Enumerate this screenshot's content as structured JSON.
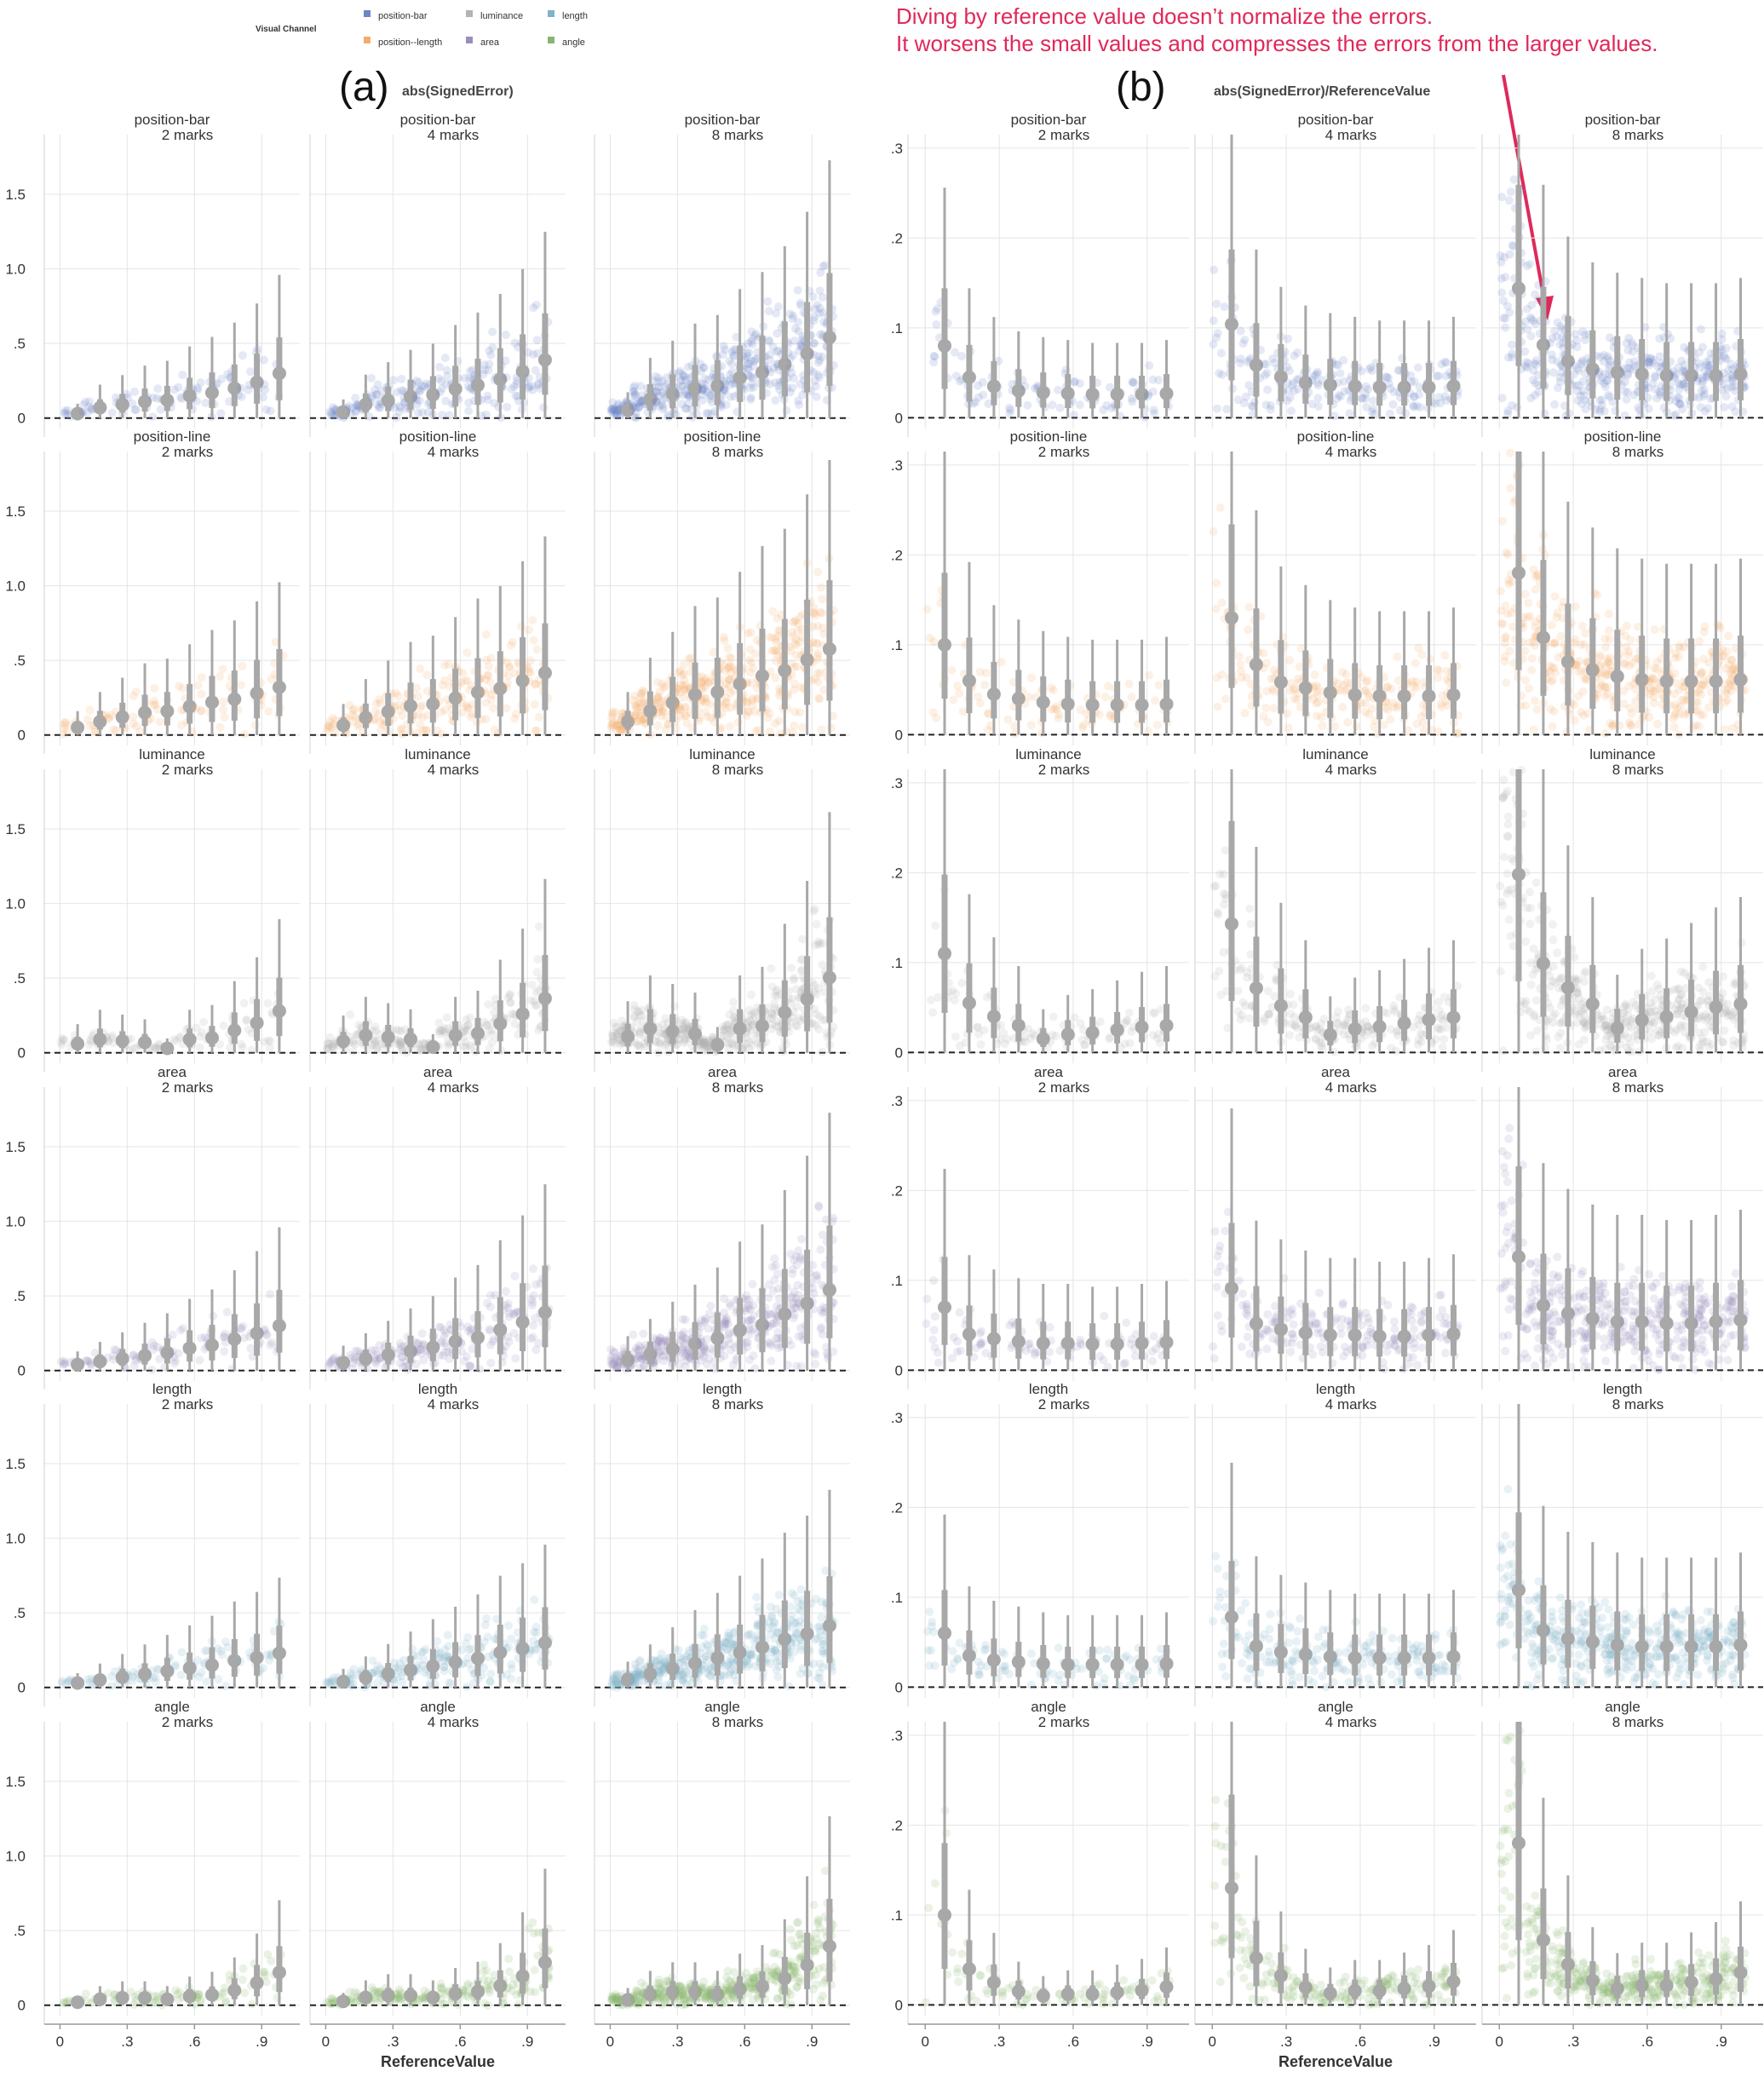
{
  "legend": {
    "title": "Visual Channel",
    "items": [
      {
        "label": "position-bar",
        "color": "#6f86c5"
      },
      {
        "label": "luminance",
        "color": "#b3b3b3"
      },
      {
        "label": "length",
        "color": "#7fb3c9"
      },
      {
        "label": "position--length",
        "color": "#f4ac6b"
      },
      {
        "label": "area",
        "color": "#9b8fba"
      },
      {
        "label": "angle",
        "color": "#8bb56f"
      }
    ]
  },
  "annotation": {
    "line1": "Diving by reference value doesn’t normalize the errors.",
    "line2": "It worsens the small values and compresses the errors from the larger values."
  },
  "chart_data": [
    {
      "type": "scatter",
      "panel_label": "(a)",
      "metric": "abs(SignedError)",
      "xlabel": "ReferenceValue",
      "x_ticks": [
        "0",
        ".3",
        ".6",
        ".9"
      ],
      "x_tick_values": [
        0,
        0.3,
        0.6,
        0.9
      ],
      "xlim": [
        -0.07,
        1.07
      ],
      "y_ticks": [
        "0",
        ".5",
        "1.0",
        "1.5"
      ],
      "y_tick_values": [
        0,
        0.5,
        1.0,
        1.5
      ],
      "ylim": [
        -0.07,
        1.9
      ],
      "rows": [
        "position-bar",
        "position-line",
        "luminance",
        "area",
        "length",
        "angle"
      ],
      "mark_counts": [
        "2 marks",
        "4 marks",
        "8 marks"
      ],
      "reference_values": [
        0.05,
        0.15,
        0.25,
        0.35,
        0.45,
        0.55,
        0.65,
        0.75,
        0.85,
        0.95
      ],
      "median_by_row": {
        "position-bar": [
          0.03,
          0.07,
          0.09,
          0.11,
          0.12,
          0.15,
          0.17,
          0.2,
          0.24,
          0.3
        ],
        "position-line": [
          0.05,
          0.09,
          0.12,
          0.15,
          0.16,
          0.19,
          0.22,
          0.24,
          0.28,
          0.32
        ],
        "luminance": [
          0.06,
          0.09,
          0.08,
          0.07,
          0.03,
          0.09,
          0.1,
          0.15,
          0.2,
          0.28
        ],
        "area": [
          0.04,
          0.06,
          0.08,
          0.1,
          0.12,
          0.15,
          0.17,
          0.21,
          0.25,
          0.3
        ],
        "length": [
          0.03,
          0.05,
          0.07,
          0.09,
          0.11,
          0.13,
          0.15,
          0.18,
          0.2,
          0.23
        ],
        "angle": [
          0.02,
          0.04,
          0.05,
          0.05,
          0.04,
          0.06,
          0.07,
          0.1,
          0.15,
          0.22
        ]
      }
    },
    {
      "type": "scatter",
      "panel_label": "(b)",
      "metric": "abs(SignedError)/ReferenceValue",
      "xlabel": "ReferenceValue",
      "x_ticks": [
        "0",
        ".3",
        ".6",
        ".9"
      ],
      "x_tick_values": [
        0,
        0.3,
        0.6,
        0.9
      ],
      "xlim": [
        -0.07,
        1.07
      ],
      "y_ticks": [
        "0",
        ".1",
        ".2",
        ".3"
      ],
      "y_tick_values": [
        0,
        0.1,
        0.2,
        0.3
      ],
      "ylim": [
        -0.012,
        0.315
      ],
      "rows": [
        "position-bar",
        "position-line",
        "luminance",
        "area",
        "length",
        "angle"
      ],
      "mark_counts": [
        "2 marks",
        "4 marks",
        "8 marks"
      ],
      "reference_values": [
        0.05,
        0.15,
        0.25,
        0.35,
        0.45,
        0.55,
        0.65,
        0.75,
        0.85,
        0.95
      ],
      "median_by_row": {
        "position-bar": [
          0.08,
          0.045,
          0.035,
          0.03,
          0.028,
          0.027,
          0.026,
          0.026,
          0.026,
          0.027
        ],
        "position-line": [
          0.1,
          0.06,
          0.045,
          0.04,
          0.036,
          0.034,
          0.033,
          0.033,
          0.033,
          0.034
        ],
        "luminance": [
          0.11,
          0.055,
          0.04,
          0.03,
          0.015,
          0.02,
          0.022,
          0.025,
          0.028,
          0.03
        ],
        "area": [
          0.07,
          0.04,
          0.035,
          0.032,
          0.03,
          0.03,
          0.029,
          0.029,
          0.03,
          0.031
        ],
        "length": [
          0.06,
          0.035,
          0.03,
          0.028,
          0.026,
          0.025,
          0.025,
          0.025,
          0.025,
          0.026
        ],
        "angle": [
          0.1,
          0.04,
          0.025,
          0.015,
          0.01,
          0.012,
          0.012,
          0.014,
          0.016,
          0.02
        ]
      }
    }
  ]
}
